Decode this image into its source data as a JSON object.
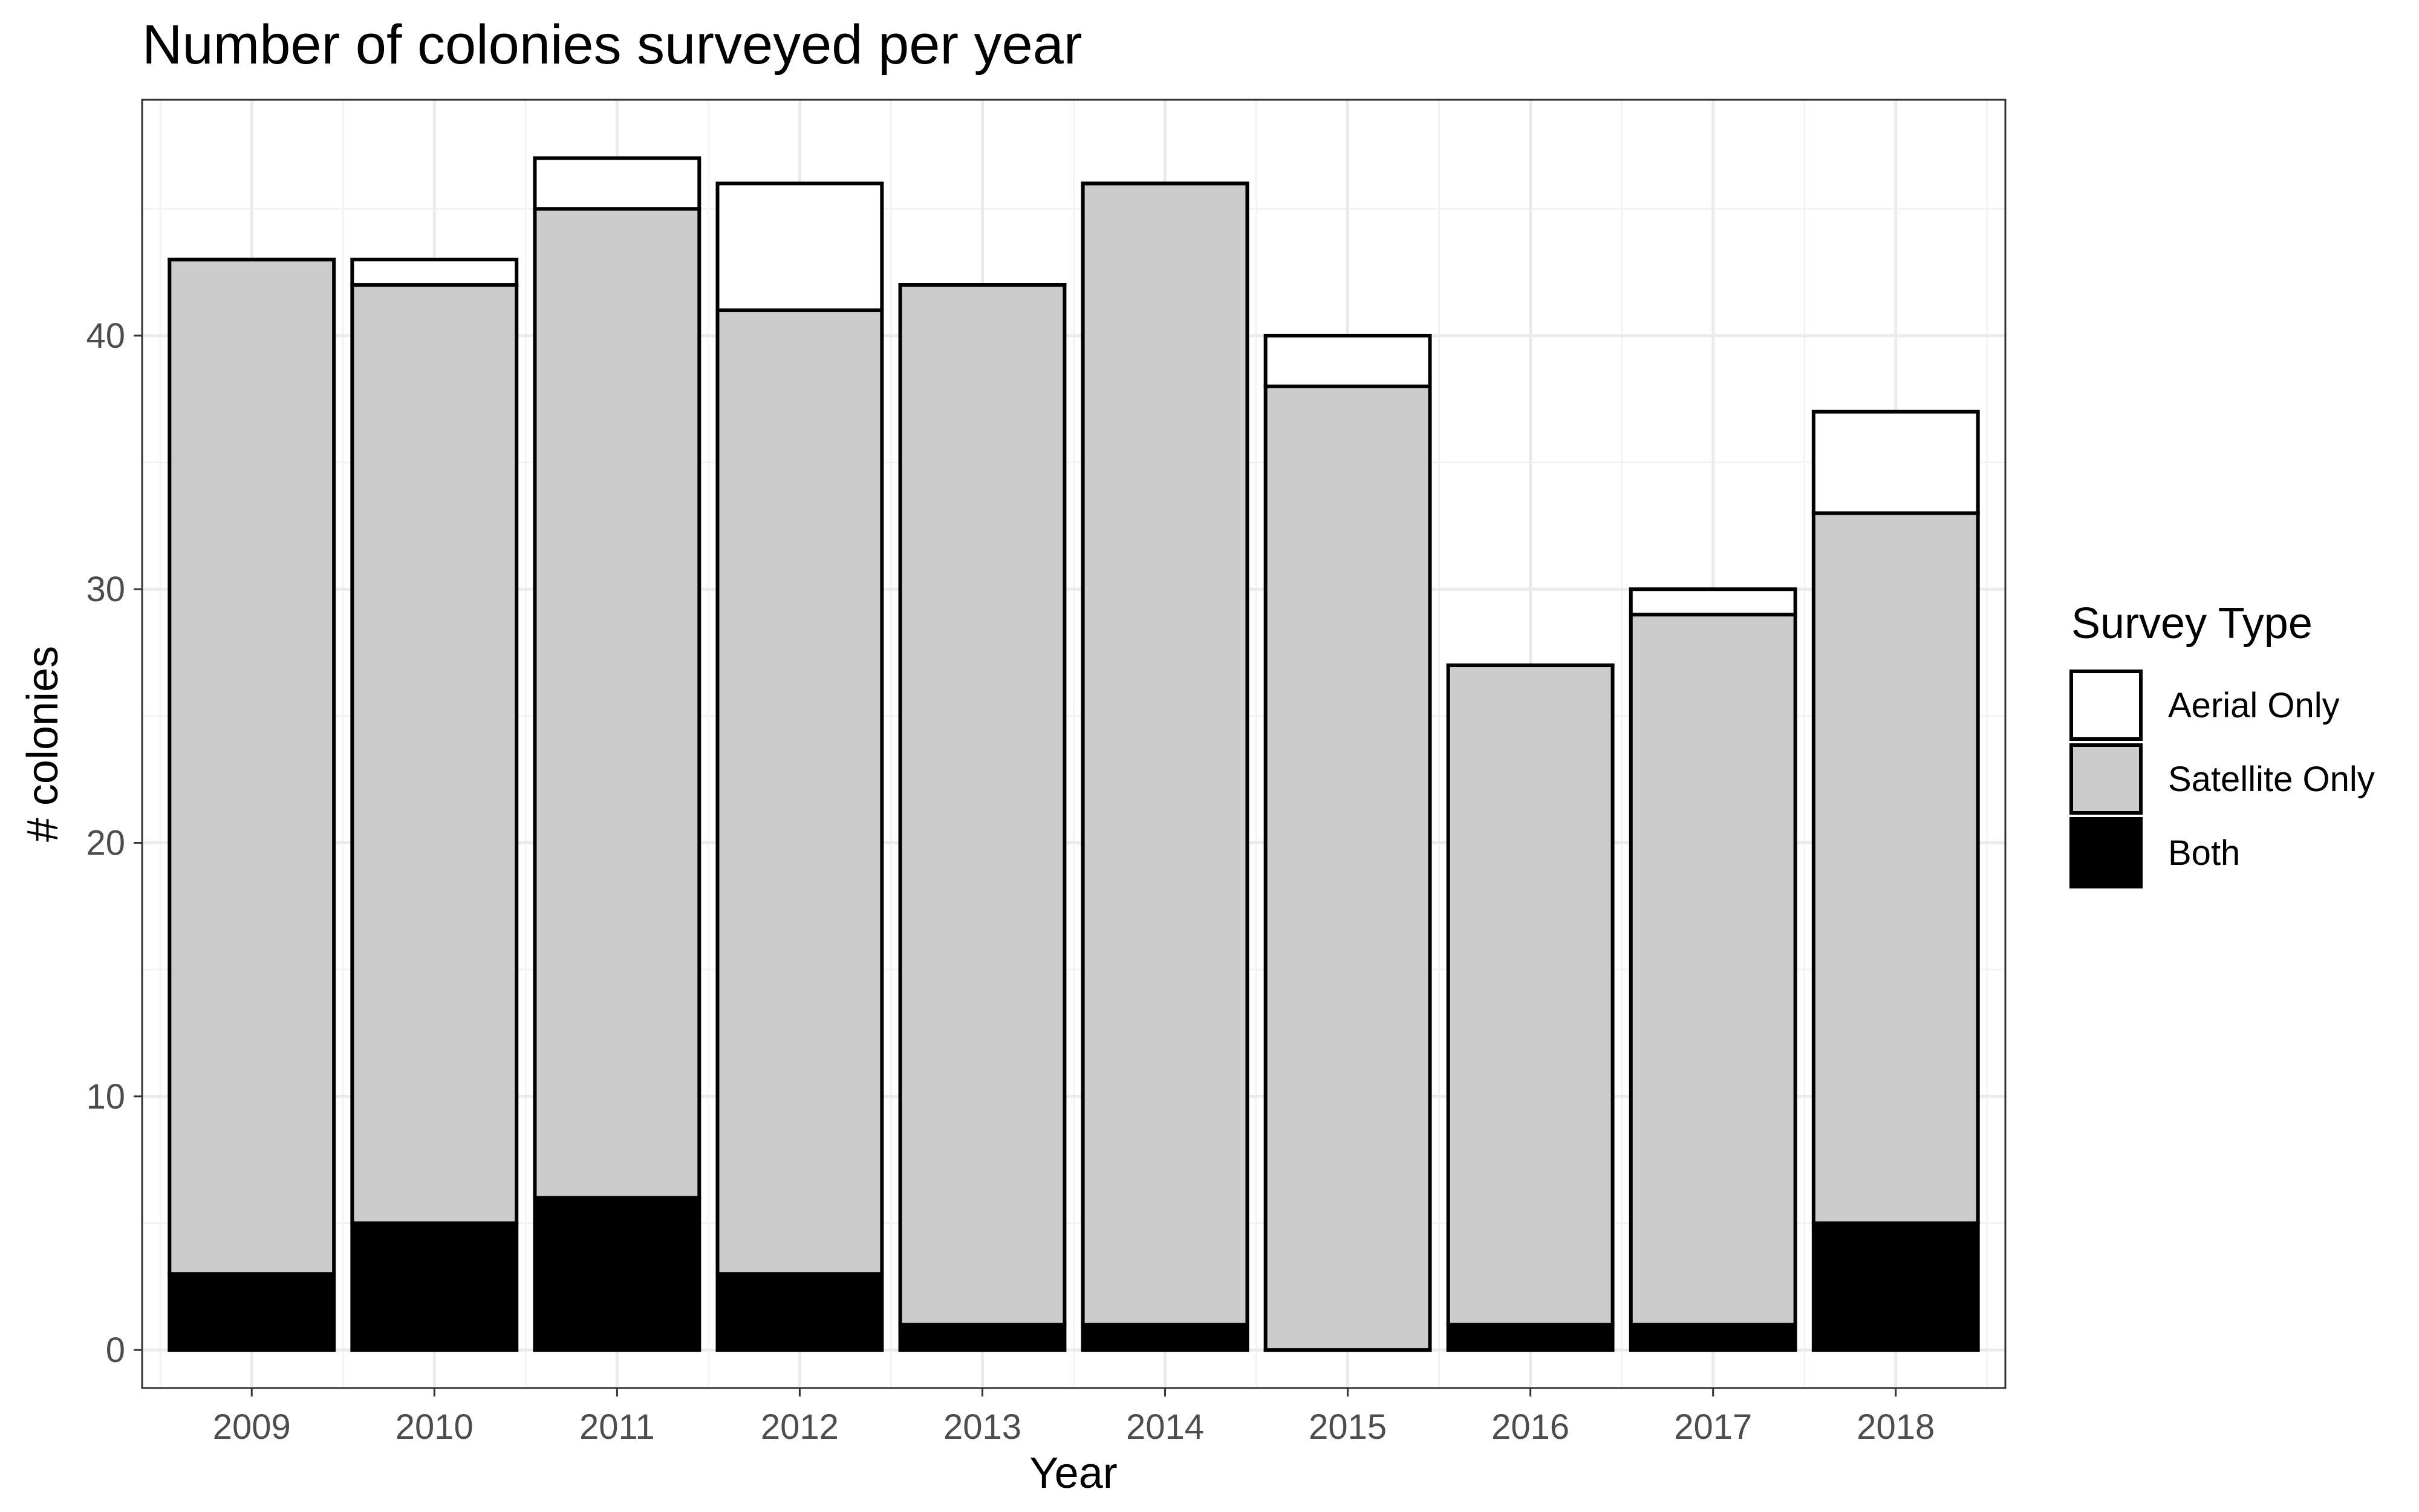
{
  "chart_data": {
    "type": "bar",
    "stacked": true,
    "title": "Number of colonies surveyed per year",
    "xlabel": "Year",
    "ylabel": "# colonies",
    "categories": [
      "2009",
      "2010",
      "2011",
      "2012",
      "2013",
      "2014",
      "2015",
      "2016",
      "2017",
      "2018"
    ],
    "series": [
      {
        "name": "Both",
        "color": "#000000",
        "values": [
          3,
          5,
          6,
          3,
          1,
          1,
          0,
          1,
          1,
          5
        ]
      },
      {
        "name": "Satellite Only",
        "color": "#cccccc",
        "values": [
          40,
          37,
          39,
          38,
          41,
          45,
          38,
          26,
          28,
          28
        ]
      },
      {
        "name": "Aerial Only",
        "color": "#ffffff",
        "values": [
          0,
          1,
          2,
          5,
          0,
          0,
          2,
          0,
          1,
          4
        ]
      }
    ],
    "ylim": [
      -1.5,
      49.3
    ],
    "yticks": [
      0,
      10,
      20,
      30,
      40
    ],
    "grid": true,
    "legend": {
      "title": "Survey Type",
      "position": "right",
      "order": [
        "Aerial Only",
        "Satellite Only",
        "Both"
      ]
    }
  }
}
